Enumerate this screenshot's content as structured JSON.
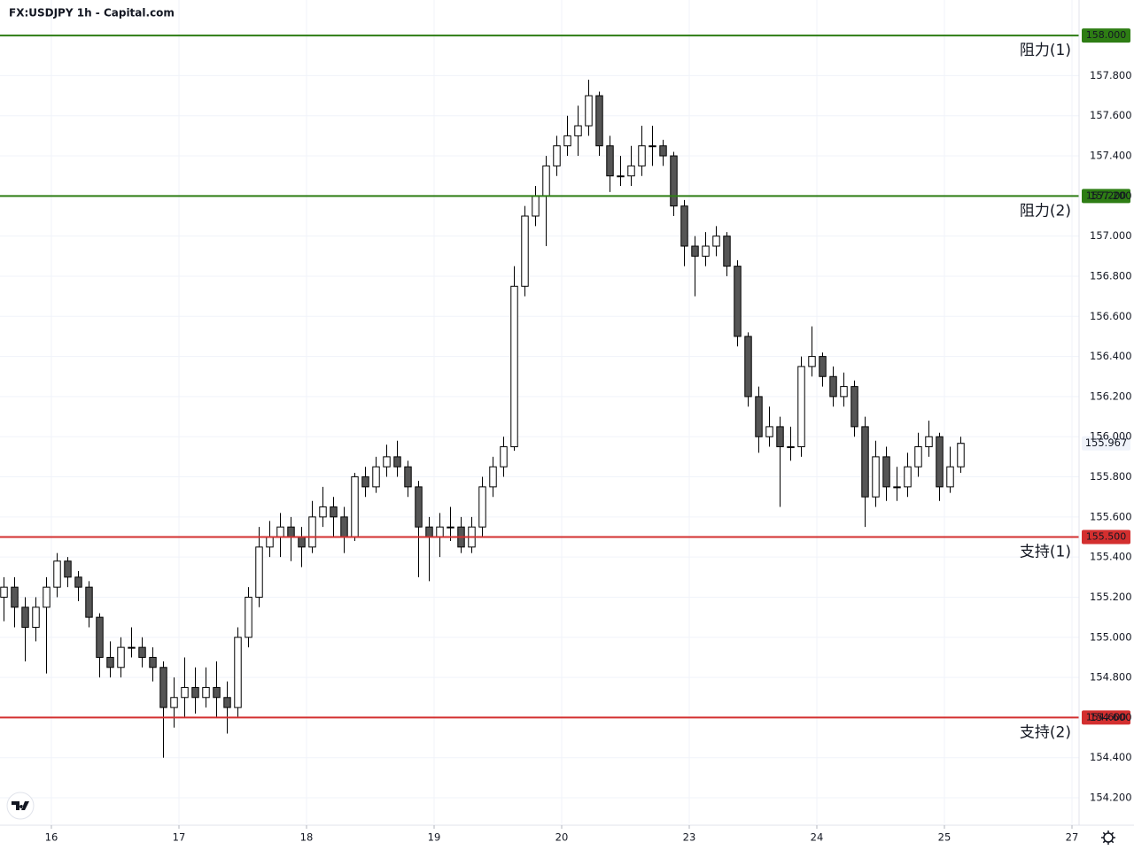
{
  "chart_data": {
    "type": "candlestick",
    "title": "FX:USDJPY 1h - Capital.com",
    "up_color": "#ffffff",
    "down_color": "#555555",
    "border_color": "#000000",
    "ylim": [
      154.07,
      158.177
    ],
    "xlim": [
      -0.333,
      101.167
    ],
    "grid": true,
    "yticks": [
      {
        "value": 154.2,
        "label": "154.200"
      },
      {
        "value": 154.4,
        "label": "154.400"
      },
      {
        "value": 154.6,
        "label": "154.600"
      },
      {
        "value": 154.8,
        "label": "154.800"
      },
      {
        "value": 155.0,
        "label": "155.000"
      },
      {
        "value": 155.2,
        "label": "155.200"
      },
      {
        "value": 155.4,
        "label": "155.400"
      },
      {
        "value": 155.6,
        "label": "155.600"
      },
      {
        "value": 155.8,
        "label": "155.800"
      },
      {
        "value": 156.0,
        "label": "156.000"
      },
      {
        "value": 156.2,
        "label": "156.200"
      },
      {
        "value": 156.4,
        "label": "156.400"
      },
      {
        "value": 156.6,
        "label": "156.600"
      },
      {
        "value": 156.8,
        "label": "156.800"
      },
      {
        "value": 157.0,
        "label": "157.000"
      },
      {
        "value": 157.2,
        "label": "157.200"
      },
      {
        "value": 157.4,
        "label": "157.400"
      },
      {
        "value": 157.6,
        "label": "157.600"
      },
      {
        "value": 157.8,
        "label": "157.800"
      }
    ],
    "xticks": [
      {
        "value": 4.5,
        "label": "16"
      },
      {
        "value": 16.5,
        "label": "17"
      },
      {
        "value": 28.5,
        "label": "18"
      },
      {
        "value": 40.5,
        "label": "19"
      },
      {
        "value": 52.5,
        "label": "20"
      },
      {
        "value": 64.5,
        "label": "23"
      },
      {
        "value": 76.5,
        "label": "24"
      },
      {
        "value": 88.5,
        "label": "25"
      },
      {
        "value": 100.5,
        "label": "27"
      }
    ],
    "levels": [
      {
        "label": "阻力(1)",
        "price": {
          "value": 158,
          "label": "158.000"
        },
        "color": "#2e7d14"
      },
      {
        "label": "阻力(2)",
        "price": {
          "value": 157.2,
          "label": "157.200"
        },
        "color": "#2e7d14"
      },
      {
        "label": "支持(1)",
        "price": {
          "value": 155.5,
          "label": "155.500"
        },
        "color": "#d32f2f"
      },
      {
        "label": "支持(2)",
        "price": {
          "value": 154.6,
          "label": "154.600"
        },
        "color": "#d32f2f"
      }
    ],
    "last_price": 155.967,
    "ohlc": [
      [
        155.2,
        155.3,
        155.08,
        155.25
      ],
      [
        155.25,
        155.3,
        155.05,
        155.15
      ],
      [
        155.15,
        155.2,
        154.88,
        155.05
      ],
      [
        155.05,
        155.2,
        154.98,
        155.15
      ],
      [
        155.15,
        155.3,
        154.82,
        155.25
      ],
      [
        155.25,
        155.42,
        155.2,
        155.38
      ],
      [
        155.38,
        155.4,
        155.25,
        155.3
      ],
      [
        155.3,
        155.33,
        155.18,
        155.25
      ],
      [
        155.25,
        155.28,
        155.05,
        155.1
      ],
      [
        155.1,
        155.12,
        154.8,
        154.9
      ],
      [
        154.9,
        154.98,
        154.8,
        154.85
      ],
      [
        154.85,
        155.0,
        154.8,
        154.95
      ],
      [
        154.95,
        155.05,
        154.9,
        154.95
      ],
      [
        154.95,
        155.0,
        154.85,
        154.9
      ],
      [
        154.9,
        154.95,
        154.78,
        154.85
      ],
      [
        154.85,
        154.88,
        154.4,
        154.65
      ],
      [
        154.65,
        154.8,
        154.55,
        154.7
      ],
      [
        154.7,
        154.9,
        154.6,
        154.75
      ],
      [
        154.75,
        154.85,
        154.62,
        154.7
      ],
      [
        154.7,
        154.85,
        154.65,
        154.75
      ],
      [
        154.75,
        154.88,
        154.6,
        154.7
      ],
      [
        154.7,
        154.78,
        154.52,
        154.65
      ],
      [
        154.65,
        155.05,
        154.6,
        155.0
      ],
      [
        155.0,
        155.25,
        154.95,
        155.2
      ],
      [
        155.2,
        155.55,
        155.15,
        155.45
      ],
      [
        155.45,
        155.58,
        155.4,
        155.5
      ],
      [
        155.5,
        155.62,
        155.4,
        155.55
      ],
      [
        155.55,
        155.6,
        155.38,
        155.5
      ],
      [
        155.5,
        155.55,
        155.35,
        155.45
      ],
      [
        155.45,
        155.68,
        155.42,
        155.6
      ],
      [
        155.6,
        155.75,
        155.55,
        155.65
      ],
      [
        155.65,
        155.7,
        155.5,
        155.6
      ],
      [
        155.6,
        155.65,
        155.42,
        155.5
      ],
      [
        155.5,
        155.82,
        155.48,
        155.8
      ],
      [
        155.8,
        155.85,
        155.7,
        155.75
      ],
      [
        155.75,
        155.9,
        155.72,
        155.85
      ],
      [
        155.85,
        155.96,
        155.8,
        155.9
      ],
      [
        155.9,
        155.98,
        155.8,
        155.85
      ],
      [
        155.85,
        155.88,
        155.7,
        155.75
      ],
      [
        155.75,
        155.78,
        155.3,
        155.55
      ],
      [
        155.55,
        155.6,
        155.28,
        155.5
      ],
      [
        155.5,
        155.62,
        155.4,
        155.55
      ],
      [
        155.55,
        155.65,
        155.48,
        155.55
      ],
      [
        155.55,
        155.6,
        155.42,
        155.45
      ],
      [
        155.45,
        155.6,
        155.42,
        155.55
      ],
      [
        155.55,
        155.8,
        155.5,
        155.75
      ],
      [
        155.75,
        155.9,
        155.7,
        155.85
      ],
      [
        155.85,
        156.0,
        155.8,
        155.95
      ],
      [
        155.95,
        156.85,
        155.93,
        156.75
      ],
      [
        156.75,
        157.15,
        156.7,
        157.1
      ],
      [
        157.1,
        157.25,
        157.05,
        157.2
      ],
      [
        157.2,
        157.4,
        156.95,
        157.35
      ],
      [
        157.35,
        157.5,
        157.3,
        157.45
      ],
      [
        157.45,
        157.6,
        157.4,
        157.5
      ],
      [
        157.5,
        157.65,
        157.4,
        157.55
      ],
      [
        157.55,
        157.78,
        157.5,
        157.7
      ],
      [
        157.7,
        157.72,
        157.4,
        157.45
      ],
      [
        157.45,
        157.5,
        157.22,
        157.3
      ],
      [
        157.3,
        157.4,
        157.25,
        157.3
      ],
      [
        157.3,
        157.45,
        157.25,
        157.35
      ],
      [
        157.35,
        157.55,
        157.3,
        157.45
      ],
      [
        157.45,
        157.55,
        157.35,
        157.45
      ],
      [
        157.45,
        157.48,
        157.35,
        157.4
      ],
      [
        157.4,
        157.42,
        157.1,
        157.15
      ],
      [
        157.15,
        157.18,
        156.85,
        156.95
      ],
      [
        156.95,
        157.0,
        156.7,
        156.9
      ],
      [
        156.9,
        157.02,
        156.85,
        156.95
      ],
      [
        156.95,
        157.05,
        156.9,
        157.0
      ],
      [
        157.0,
        157.02,
        156.8,
        156.85
      ],
      [
        156.85,
        156.88,
        156.45,
        156.5
      ],
      [
        156.5,
        156.52,
        156.15,
        156.2
      ],
      [
        156.2,
        156.25,
        155.92,
        156.0
      ],
      [
        156.0,
        156.15,
        155.95,
        156.05
      ],
      [
        156.05,
        156.1,
        155.65,
        155.95
      ],
      [
        155.95,
        156.05,
        155.88,
        155.95
      ],
      [
        155.95,
        156.4,
        155.9,
        156.35
      ],
      [
        156.35,
        156.55,
        156.3,
        156.4
      ],
      [
        156.4,
        156.42,
        156.25,
        156.3
      ],
      [
        156.3,
        156.35,
        156.15,
        156.2
      ],
      [
        156.2,
        156.32,
        156.15,
        156.25
      ],
      [
        156.25,
        156.28,
        156.0,
        156.05
      ],
      [
        156.05,
        156.1,
        155.55,
        155.7
      ],
      [
        155.7,
        155.98,
        155.65,
        155.9
      ],
      [
        155.9,
        155.95,
        155.68,
        155.75
      ],
      [
        155.75,
        155.85,
        155.68,
        155.75
      ],
      [
        155.75,
        155.92,
        155.7,
        155.85
      ],
      [
        155.85,
        156.02,
        155.8,
        155.95
      ],
      [
        155.95,
        156.08,
        155.9,
        156.0
      ],
      [
        156.0,
        156.02,
        155.68,
        155.75
      ],
      [
        155.75,
        155.95,
        155.72,
        155.85
      ],
      [
        155.85,
        156.0,
        155.82,
        155.967
      ]
    ]
  }
}
